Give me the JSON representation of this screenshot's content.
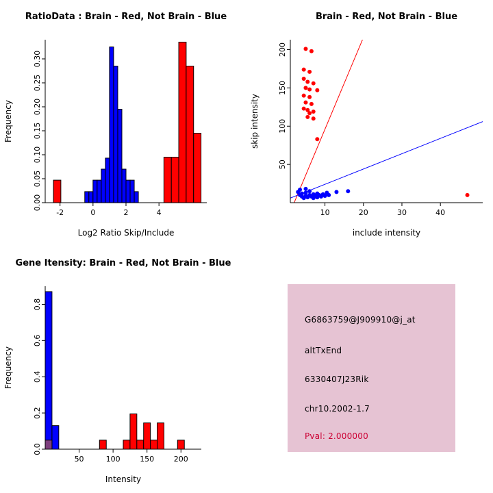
{
  "window": {
    "background": "#ffffff"
  },
  "palette": {
    "red": "#ff0000",
    "blue": "#0000ff",
    "purple": "#7e3f7e",
    "axis": "#000000"
  },
  "chart_data": [
    {
      "id": "ratio_hist",
      "type": "bar",
      "title": "RatioData : Brain - Red, Not Brain - Blue",
      "xlabel": "Log2 Ratio Skip/Include",
      "ylabel": "Frequency",
      "xlim": [
        -2.9,
        6.9
      ],
      "ylim": [
        0,
        0.34
      ],
      "xticks": [
        -2,
        0,
        2,
        4
      ],
      "xtick_labels": [
        "-2",
        "0",
        "2",
        "4"
      ],
      "yticks": [
        0,
        0.05,
        0.1,
        0.15,
        0.2,
        0.25,
        0.3
      ],
      "ytick_labels": [
        "0.00",
        "0.05",
        "0.10",
        "0.15",
        "0.20",
        "0.25",
        "0.30"
      ],
      "legend": {
        "brain": "red",
        "not_brain": "blue"
      },
      "bars": [
        {
          "x0": -2.4,
          "x1": -1.95,
          "h": 0.047,
          "color": "red"
        },
        {
          "x0": -0.5,
          "x1": -0.25,
          "h": 0.023,
          "color": "blue"
        },
        {
          "x0": -0.25,
          "x1": 0,
          "h": 0.023,
          "color": "blue"
        },
        {
          "x0": 0,
          "x1": 0.25,
          "h": 0.047,
          "color": "blue"
        },
        {
          "x0": 0.25,
          "x1": 0.5,
          "h": 0.047,
          "color": "blue"
        },
        {
          "x0": 0.5,
          "x1": 0.75,
          "h": 0.07,
          "color": "blue"
        },
        {
          "x0": 0.75,
          "x1": 1.0,
          "h": 0.093,
          "color": "blue"
        },
        {
          "x0": 1.0,
          "x1": 1.25,
          "h": 0.325,
          "color": "blue"
        },
        {
          "x0": 1.25,
          "x1": 1.5,
          "h": 0.285,
          "color": "blue"
        },
        {
          "x0": 1.5,
          "x1": 1.75,
          "h": 0.195,
          "color": "blue"
        },
        {
          "x0": 1.75,
          "x1": 2.0,
          "h": 0.07,
          "color": "blue"
        },
        {
          "x0": 2.0,
          "x1": 2.25,
          "h": 0.047,
          "color": "blue"
        },
        {
          "x0": 2.25,
          "x1": 2.5,
          "h": 0.047,
          "color": "blue"
        },
        {
          "x0": 2.5,
          "x1": 2.75,
          "h": 0.023,
          "color": "blue"
        },
        {
          "x0": 4.3,
          "x1": 4.75,
          "h": 0.095,
          "color": "red"
        },
        {
          "x0": 4.75,
          "x1": 5.2,
          "h": 0.095,
          "color": "red"
        },
        {
          "x0": 5.2,
          "x1": 5.65,
          "h": 0.335,
          "color": "red"
        },
        {
          "x0": 5.65,
          "x1": 6.1,
          "h": 0.285,
          "color": "red"
        },
        {
          "x0": 6.1,
          "x1": 6.55,
          "h": 0.145,
          "color": "red"
        }
      ]
    },
    {
      "id": "intensity_scatter",
      "type": "scatter",
      "title": "Brain - Red, Not Brain - Blue",
      "xlabel": "include intensity",
      "ylabel": "skip intensity",
      "xlim": [
        1,
        51
      ],
      "ylim": [
        0,
        213
      ],
      "xticks": [
        10,
        20,
        30,
        40
      ],
      "xtick_labels": [
        "10",
        "20",
        "30",
        "40"
      ],
      "yticks": [
        50,
        100,
        150,
        200
      ],
      "ytick_labels": [
        "50",
        "100",
        "150",
        "200"
      ],
      "series": [
        {
          "name": "brain",
          "color": "red",
          "points": [
            [
              5,
              201
            ],
            [
              6.5,
              198
            ],
            [
              4.5,
              174
            ],
            [
              6,
              171
            ],
            [
              4.5,
              162
            ],
            [
              5.5,
              158
            ],
            [
              7,
              156
            ],
            [
              5,
              150
            ],
            [
              6,
              148
            ],
            [
              8,
              147
            ],
            [
              4.5,
              140
            ],
            [
              6,
              138
            ],
            [
              5,
              131
            ],
            [
              6.5,
              129
            ],
            [
              4.5,
              123
            ],
            [
              5.5,
              121
            ],
            [
              7,
              119
            ],
            [
              6,
              117
            ],
            [
              5.5,
              112
            ],
            [
              7,
              110
            ],
            [
              8,
              83
            ],
            [
              47,
              10
            ]
          ]
        },
        {
          "name": "not_brain",
          "color": "blue",
          "points": [
            [
              3,
              14
            ],
            [
              3.5,
              10
            ],
            [
              3.5,
              17
            ],
            [
              4,
              8
            ],
            [
              4,
              12
            ],
            [
              4.5,
              6
            ],
            [
              5,
              9
            ],
            [
              5,
              13
            ],
            [
              5,
              18
            ],
            [
              5.5,
              7
            ],
            [
              6,
              10
            ],
            [
              6,
              15
            ],
            [
              6.5,
              8
            ],
            [
              7,
              6
            ],
            [
              7,
              11
            ],
            [
              7.5,
              9
            ],
            [
              8,
              7
            ],
            [
              8,
              12
            ],
            [
              8.5,
              10
            ],
            [
              9,
              8
            ],
            [
              9.5,
              11
            ],
            [
              10,
              9
            ],
            [
              10.5,
              13
            ],
            [
              11,
              10
            ],
            [
              13,
              14
            ],
            [
              16,
              15
            ]
          ]
        }
      ],
      "lines": [
        {
          "name": "brain-fit",
          "color": "red",
          "slope": 12,
          "intercept": -24
        },
        {
          "name": "not-brain-fit",
          "color": "blue",
          "slope": 2,
          "intercept": 4
        }
      ]
    },
    {
      "id": "gene_hist",
      "type": "bar",
      "title": "Gene Itensity: Brain - Red, Not Brain - Blue",
      "xlabel": "Intensity",
      "ylabel": "Frequency",
      "xlim": [
        0,
        230
      ],
      "ylim": [
        0,
        0.9
      ],
      "xticks": [
        50,
        100,
        150,
        200
      ],
      "xtick_labels": [
        "50",
        "100",
        "150",
        "200"
      ],
      "yticks": [
        0,
        0.2,
        0.4,
        0.6,
        0.8
      ],
      "ytick_labels": [
        "0.0",
        "0.2",
        "0.4",
        "0.6",
        "0.8"
      ],
      "bars": [
        {
          "x0": 0,
          "x1": 10,
          "h": 0.87,
          "color": "blue"
        },
        {
          "x0": 10,
          "x1": 20,
          "h": 0.13,
          "color": "blue"
        },
        {
          "x0": 0,
          "x1": 10,
          "h": 0.05,
          "color": "purple"
        },
        {
          "x0": 80,
          "x1": 90,
          "h": 0.05,
          "color": "red"
        },
        {
          "x0": 115,
          "x1": 125,
          "h": 0.05,
          "color": "red"
        },
        {
          "x0": 125,
          "x1": 135,
          "h": 0.195,
          "color": "red"
        },
        {
          "x0": 135,
          "x1": 145,
          "h": 0.05,
          "color": "red"
        },
        {
          "x0": 145,
          "x1": 155,
          "h": 0.145,
          "color": "red"
        },
        {
          "x0": 155,
          "x1": 165,
          "h": 0.05,
          "color": "red"
        },
        {
          "x0": 165,
          "x1": 175,
          "h": 0.145,
          "color": "red"
        },
        {
          "x0": 195,
          "x1": 205,
          "h": 0.05,
          "color": "red"
        }
      ]
    },
    {
      "id": "info_panel",
      "type": "table",
      "background": "#e6c3d3",
      "lines": [
        {
          "text": "G6863759@J909910@j_at",
          "color": "#000000"
        },
        {
          "text": "altTxEnd",
          "color": "#000000"
        },
        {
          "text": "6330407J23Rik",
          "color": "#000000"
        },
        {
          "text": "chr10.2002-1.7",
          "color": "#000000"
        },
        {
          "text": "Pval: 2.000000",
          "color": "#cc0033"
        }
      ]
    }
  ]
}
